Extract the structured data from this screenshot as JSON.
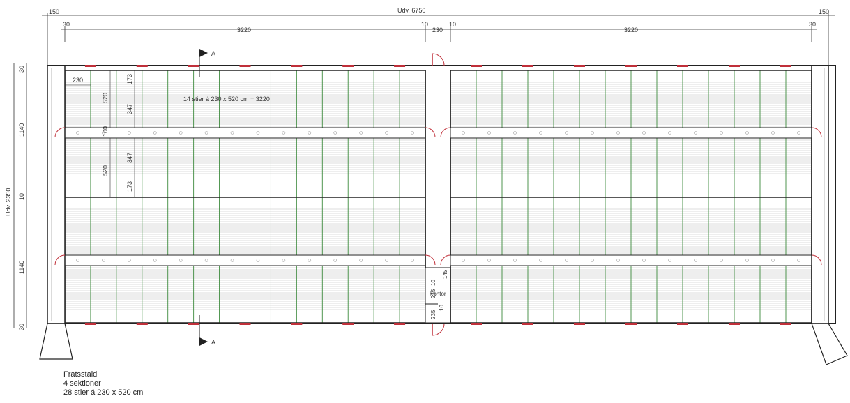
{
  "dimensions": {
    "overall_width": "Udv. 6750",
    "left_overhang": "150",
    "right_overhang": "150",
    "wall_left": "30",
    "wall_right": "30",
    "section_left": "3220",
    "section_right": "3220",
    "center_wall_a": "10",
    "center_aisle": "230",
    "center_wall_b": "10",
    "overall_depth": "Udv. 2350",
    "depth_top_wall": "30",
    "depth_upper": "1140",
    "depth_middle": "10",
    "depth_lower": "1140",
    "depth_bottom_wall": "30",
    "pen_width": "230",
    "pen_length_upper": "520",
    "pen_length_lower": "520",
    "slat_upper_a": "173",
    "slat_upper_b": "347",
    "feed_aisle": "100",
    "slat_lower_b": "347",
    "slat_lower_a": "173",
    "pen_note": "14 stier á 230 x 520 cm = 3220",
    "office_label": "Kontor",
    "office_dim_a": "235",
    "office_dim_b": "10",
    "office_dim_c": "235",
    "office_dim_d": "10",
    "office_dim_e": "145"
  },
  "section_marks": {
    "top": "A",
    "bottom": "A"
  },
  "caption": {
    "line1": "Fratsstald",
    "line2": "4 sektioner",
    "line3": "28 stier á 230 x 520 cm"
  },
  "colors": {
    "walls": "#222222",
    "pen_dividers": "#3c8a3c",
    "doors": "#c0303a",
    "slats": "#bdbdbd"
  }
}
